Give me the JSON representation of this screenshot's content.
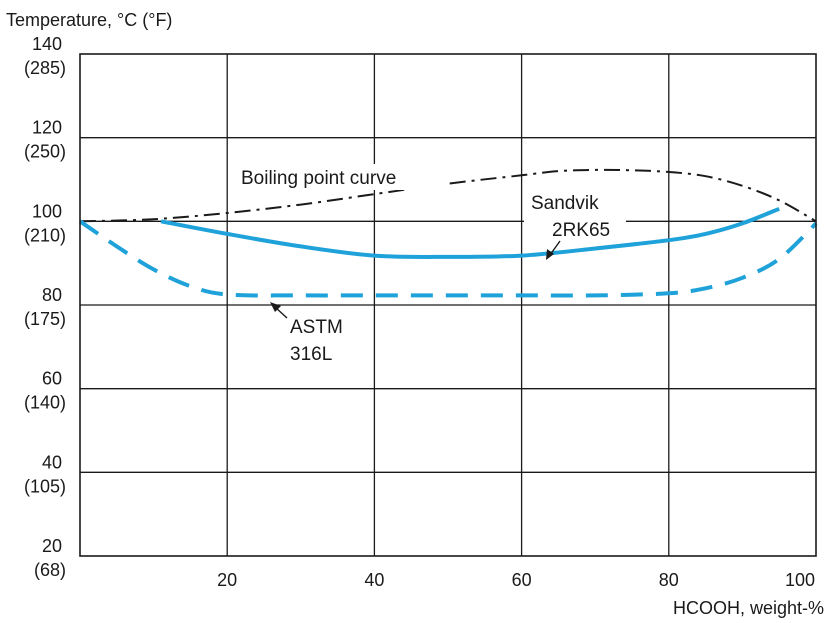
{
  "chart_data": {
    "type": "line",
    "ylabel": "Temperature, °C (°F)",
    "xlabel": "HCOOH, weight-%",
    "xlim": [
      0,
      100
    ],
    "ylim": [
      20,
      140
    ],
    "x_ticks": [
      {
        "value": 20,
        "label": "20"
      },
      {
        "value": 40,
        "label": "40"
      },
      {
        "value": 60,
        "label": "60"
      },
      {
        "value": 80,
        "label": "80"
      },
      {
        "value": 100,
        "label": "100"
      }
    ],
    "y_ticks": [
      {
        "value": 20,
        "c": "20",
        "f": "(68)"
      },
      {
        "value": 40,
        "c": "40",
        "f": "(105)"
      },
      {
        "value": 60,
        "c": "60",
        "f": "(140)"
      },
      {
        "value": 80,
        "c": "80",
        "f": "(175)"
      },
      {
        "value": 100,
        "c": "100",
        "f": "(210)"
      },
      {
        "value": 120,
        "c": "120",
        "f": "(250)"
      },
      {
        "value": 140,
        "c": "140",
        "f": "(285)"
      }
    ],
    "grid": true,
    "series": [
      {
        "name": "Boiling point curve",
        "color": "#1a1a1a",
        "dash": "dashdot",
        "x": [
          0,
          10,
          20,
          30,
          40,
          50,
          60,
          65,
          70,
          75,
          80,
          85,
          90,
          95,
          100
        ],
        "y": [
          100,
          100.5,
          102,
          104,
          106.5,
          109,
          111,
          112,
          112.3,
          112.2,
          111.8,
          110.8,
          108.5,
          105,
          100
        ]
      },
      {
        "name": "Sandvik 2RK65",
        "color": "#1fa2d9",
        "dash": "solid",
        "x": [
          11,
          20,
          30,
          40,
          50,
          60,
          70,
          80,
          85,
          90,
          95
        ],
        "y": [
          100,
          97,
          94,
          91.8,
          91.5,
          91.8,
          93.5,
          95.5,
          97,
          99.5,
          103
        ]
      },
      {
        "name": "ASTM 316L",
        "color": "#1fa2d9",
        "dash": "dashed",
        "x": [
          0,
          5,
          10,
          15,
          20,
          30,
          40,
          50,
          60,
          70,
          80,
          85,
          90,
          95,
          100
        ],
        "y": [
          100,
          94,
          88.5,
          84.5,
          82.5,
          82.3,
          82.3,
          82.3,
          82.3,
          82.3,
          82.8,
          84,
          86.5,
          91,
          99.5
        ]
      }
    ],
    "annotations": [
      {
        "lines": [
          "Boiling point curve"
        ],
        "series": "Boiling point curve"
      },
      {
        "lines": [
          "Sandvik",
          "2RK65"
        ],
        "series": "Sandvik 2RK65"
      },
      {
        "lines": [
          "ASTM",
          "316L"
        ],
        "series": "ASTM 316L"
      }
    ]
  }
}
